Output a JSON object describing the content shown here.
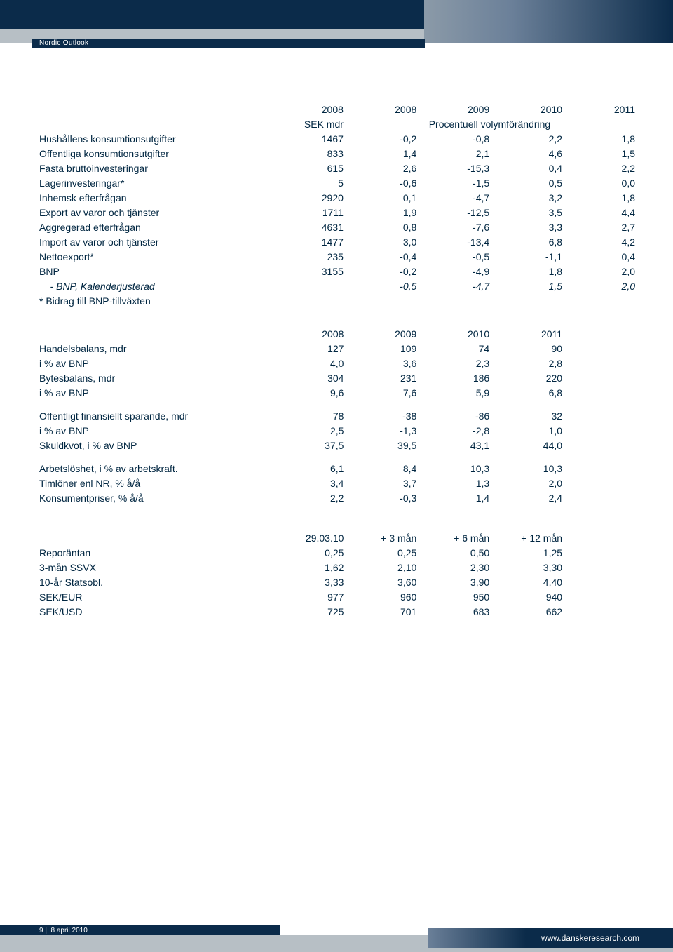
{
  "header": {
    "tag": "Nordic Outlook"
  },
  "footer": {
    "page": "9",
    "sep": "|",
    "date": "8 april 2010",
    "url": "www.danskeresearch.com"
  },
  "table1": {
    "years": [
      "2008",
      "2008",
      "2009",
      "2010",
      "2011"
    ],
    "unit_col1": "SEK mdr",
    "unit_span": "Procentuell volymförändring",
    "footnote": "* Bidrag till BNP-tillväxten",
    "rows": [
      {
        "label": "Hushållens konsumtionsutgifter",
        "v": [
          "1467",
          "-0,2",
          "-0,8",
          "2,2",
          "1,8"
        ]
      },
      {
        "label": "Offentliga konsumtionsutgifter",
        "v": [
          "833",
          "1,4",
          "2,1",
          "4,6",
          "1,5"
        ]
      },
      {
        "label": "Fasta bruttoinvesteringar",
        "v": [
          "615",
          "2,6",
          "-15,3",
          "0,4",
          "2,2"
        ]
      },
      {
        "label": "Lagerinvesteringar*",
        "v": [
          "5",
          "-0,6",
          "-1,5",
          "0,5",
          "0,0"
        ]
      },
      {
        "label": "Inhemsk efterfrågan",
        "v": [
          "2920",
          "0,1",
          "-4,7",
          "3,2",
          "1,8"
        ]
      },
      {
        "label": "Export av varor och tjänster",
        "v": [
          "1711",
          "1,9",
          "-12,5",
          "3,5",
          "4,4"
        ]
      },
      {
        "label": "Aggregerad efterfrågan",
        "v": [
          "4631",
          "0,8",
          "-7,6",
          "3,3",
          "2,7"
        ]
      },
      {
        "label": "Import av varor och tjänster",
        "v": [
          "1477",
          "3,0",
          "-13,4",
          "6,8",
          "4,2"
        ]
      },
      {
        "label": "Nettoexport*",
        "v": [
          "235",
          "-0,4",
          "-0,5",
          "-1,1",
          "0,4"
        ]
      },
      {
        "label": "BNP",
        "v": [
          "3155",
          "-0,2",
          "-4,9",
          "1,8",
          "2,0"
        ]
      },
      {
        "label": "    - BNP, Kalenderjusterad",
        "v": [
          "",
          "-0,5",
          "-4,7",
          "1,5",
          "2,0"
        ],
        "italic": true
      }
    ]
  },
  "table2": {
    "years": [
      "2008",
      "2009",
      "2010",
      "2011"
    ],
    "groups": [
      [
        {
          "label": "Handelsbalans, mdr",
          "v": [
            "127",
            "109",
            "74",
            "90"
          ]
        },
        {
          "label": "i % av BNP",
          "v": [
            "4,0",
            "3,6",
            "2,3",
            "2,8"
          ]
        },
        {
          "label": "Bytesbalans, mdr",
          "v": [
            "304",
            "231",
            "186",
            "220"
          ]
        },
        {
          "label": "i % av BNP",
          "v": [
            "9,6",
            "7,6",
            "5,9",
            "6,8"
          ]
        }
      ],
      [
        {
          "label": "Offentligt finansiellt sparande, mdr",
          "v": [
            "78",
            "-38",
            "-86",
            "32"
          ]
        },
        {
          "label": "i % av BNP",
          "v": [
            "2,5",
            "-1,3",
            "-2,8",
            "1,0"
          ]
        },
        {
          "label": "Skuldkvot, i % av BNP",
          "v": [
            "37,5",
            "39,5",
            "43,1",
            "44,0"
          ]
        }
      ],
      [
        {
          "label": "Arbetslöshet, i % av arbetskraft.",
          "v": [
            "6,1",
            "8,4",
            "10,3",
            "10,3"
          ]
        },
        {
          "label": "Timlöner enl NR, % å/å",
          "v": [
            "3,4",
            "3,7",
            "1,3",
            "2,0"
          ]
        },
        {
          "label": "Konsumentpriser, % å/å",
          "v": [
            "2,2",
            "-0,3",
            "1,4",
            "2,4"
          ]
        }
      ]
    ]
  },
  "table3": {
    "headers": [
      "29.03.10",
      "+ 3 mån",
      "+ 6 mån",
      "+ 12 mån"
    ],
    "rows": [
      {
        "label": "Reporäntan",
        "v": [
          "0,25",
          "0,25",
          "0,50",
          "1,25"
        ]
      },
      {
        "label": "3-mån SSVX",
        "v": [
          "1,62",
          "2,10",
          "2,30",
          "3,30"
        ]
      },
      {
        "label": "10-år Statsobl.",
        "v": [
          "3,33",
          "3,60",
          "3,90",
          "4,40"
        ]
      },
      {
        "label": "SEK/EUR",
        "v": [
          "977",
          "960",
          "950",
          "940"
        ]
      },
      {
        "label": "SEK/USD",
        "v": [
          "725",
          "701",
          "683",
          "662"
        ]
      }
    ]
  }
}
